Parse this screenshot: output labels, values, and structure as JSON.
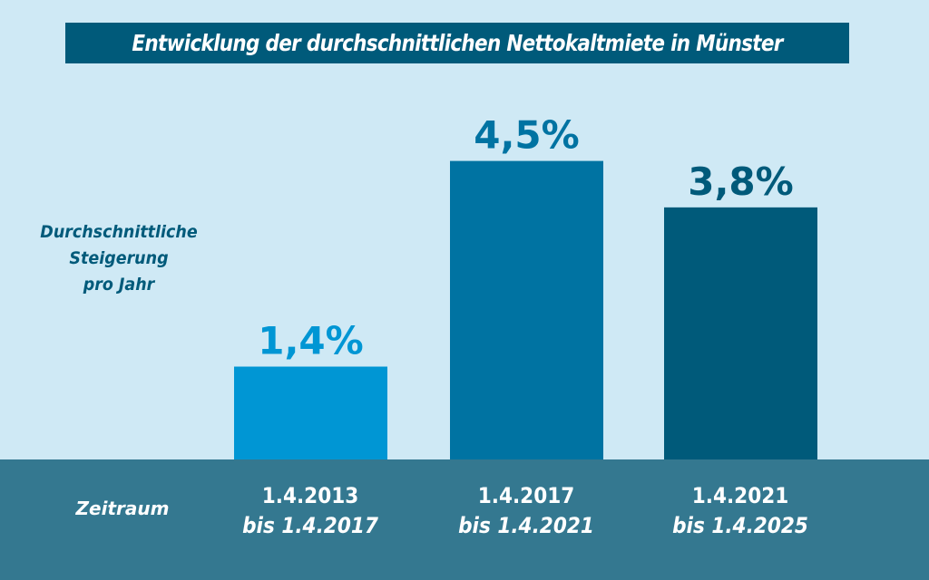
{
  "chart_data": {
    "type": "bar",
    "title": "Entwicklung der durchschnittlichen Nettokaltmiete in Münster",
    "ylabel_lines": [
      "Durchschnittliche",
      "Steigerung",
      "pro Jahr"
    ],
    "xlabel": "Zeitraum",
    "categories": [
      [
        "1.4.2013",
        "bis 1.4.2017"
      ],
      [
        "1.4.2017",
        "bis 1.4.2021"
      ],
      [
        "1.4.2021",
        "bis 1.4.2025"
      ]
    ],
    "values": [
      1.4,
      4.5,
      3.8
    ],
    "value_labels": [
      "1,4%",
      "4,5%",
      "3,8%"
    ],
    "unit": "%",
    "ylim": [
      0,
      5
    ],
    "grid": false,
    "colors": {
      "bars": [
        "#0096d4",
        "#0073a2",
        "#005a7a"
      ],
      "background": "#cfe9f5",
      "title_box": "#005a7a",
      "bottom_band": "#347890",
      "ylabel": "#005a7a"
    }
  }
}
